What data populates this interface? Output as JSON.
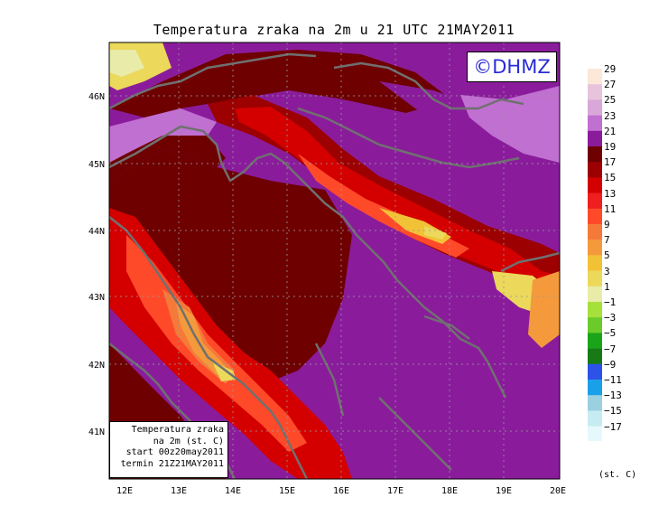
{
  "title": "Temperatura zraka na 2m u 21 UTC 21MAY2011",
  "brand": "©DHMZ",
  "info_box": {
    "line1": "Temperatura zraka",
    "line2": "na 2m (st. C)",
    "line3": "start 00z20may2011",
    "line4": "termin 21Z21MAY2011"
  },
  "lon_ticks": [
    "12E",
    "13E",
    "14E",
    "15E",
    "16E",
    "17E",
    "18E",
    "19E",
    "20E"
  ],
  "lat_ticks": [
    "46N",
    "45N",
    "44N",
    "43N",
    "42N",
    "41N"
  ],
  "colorbar": {
    "unit": "(st. C)",
    "labels": [
      "29",
      "27",
      "25",
      "23",
      "21",
      "19",
      "17",
      "15",
      "13",
      "11",
      "9",
      "7",
      "5",
      "3",
      "1",
      "−1",
      "−3",
      "−5",
      "−7",
      "−9",
      "−11",
      "−13",
      "−15",
      "−17"
    ],
    "colors": [
      "#fbe8d8",
      "#e7c4dc",
      "#d9a8d8",
      "#c070d0",
      "#8a1c9c",
      "#6e0000",
      "#9c0000",
      "#d40000",
      "#ef1f1f",
      "#ff4a2a",
      "#f57a3a",
      "#f49a3c",
      "#f2c236",
      "#ecd85a",
      "#e8eca8",
      "#a6e03a",
      "#6acb2a",
      "#1aa41a",
      "#177a17",
      "#2d52e8",
      "#1aa0e8",
      "#9ad0e0",
      "#c6ecf2",
      "#e6f8fb"
    ]
  }
}
